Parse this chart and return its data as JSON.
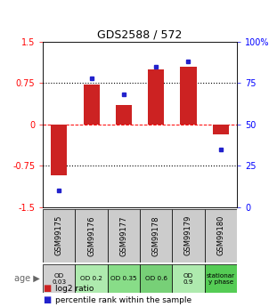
{
  "title": "GDS2588 / 572",
  "samples": [
    "GSM99175",
    "GSM99176",
    "GSM99177",
    "GSM99178",
    "GSM99179",
    "GSM99180"
  ],
  "log2_ratio": [
    -0.93,
    0.72,
    0.35,
    1.0,
    1.05,
    -0.18
  ],
  "percentile_rank": [
    10,
    78,
    68,
    85,
    88,
    35
  ],
  "bar_color": "#cc2222",
  "dot_color": "#2222cc",
  "ylim_left": [
    -1.5,
    1.5
  ],
  "ylim_right": [
    0,
    100
  ],
  "yticks_left": [
    -1.5,
    -0.75,
    0,
    0.75,
    1.5
  ],
  "yticks_right": [
    0,
    25,
    50,
    75,
    100
  ],
  "yticklabels_left": [
    "-1.5",
    "-0.75",
    "0",
    "0.75",
    "1.5"
  ],
  "yticklabels_right": [
    "0",
    "25",
    "50",
    "75",
    "100%"
  ],
  "age_labels": [
    "OD\n0.03",
    "OD 0.2",
    "OD 0.35",
    "OD 0.6",
    "OD\n0.9",
    "stationar\ny phase"
  ],
  "age_colors": [
    "#d0d0d0",
    "#aeeaae",
    "#88dd88",
    "#77d077",
    "#aeeaae",
    "#55cc55"
  ],
  "legend1": "log2 ratio",
  "legend2": "percentile rank within the sample",
  "bar_width": 0.5,
  "sample_bg": "#cccccc"
}
